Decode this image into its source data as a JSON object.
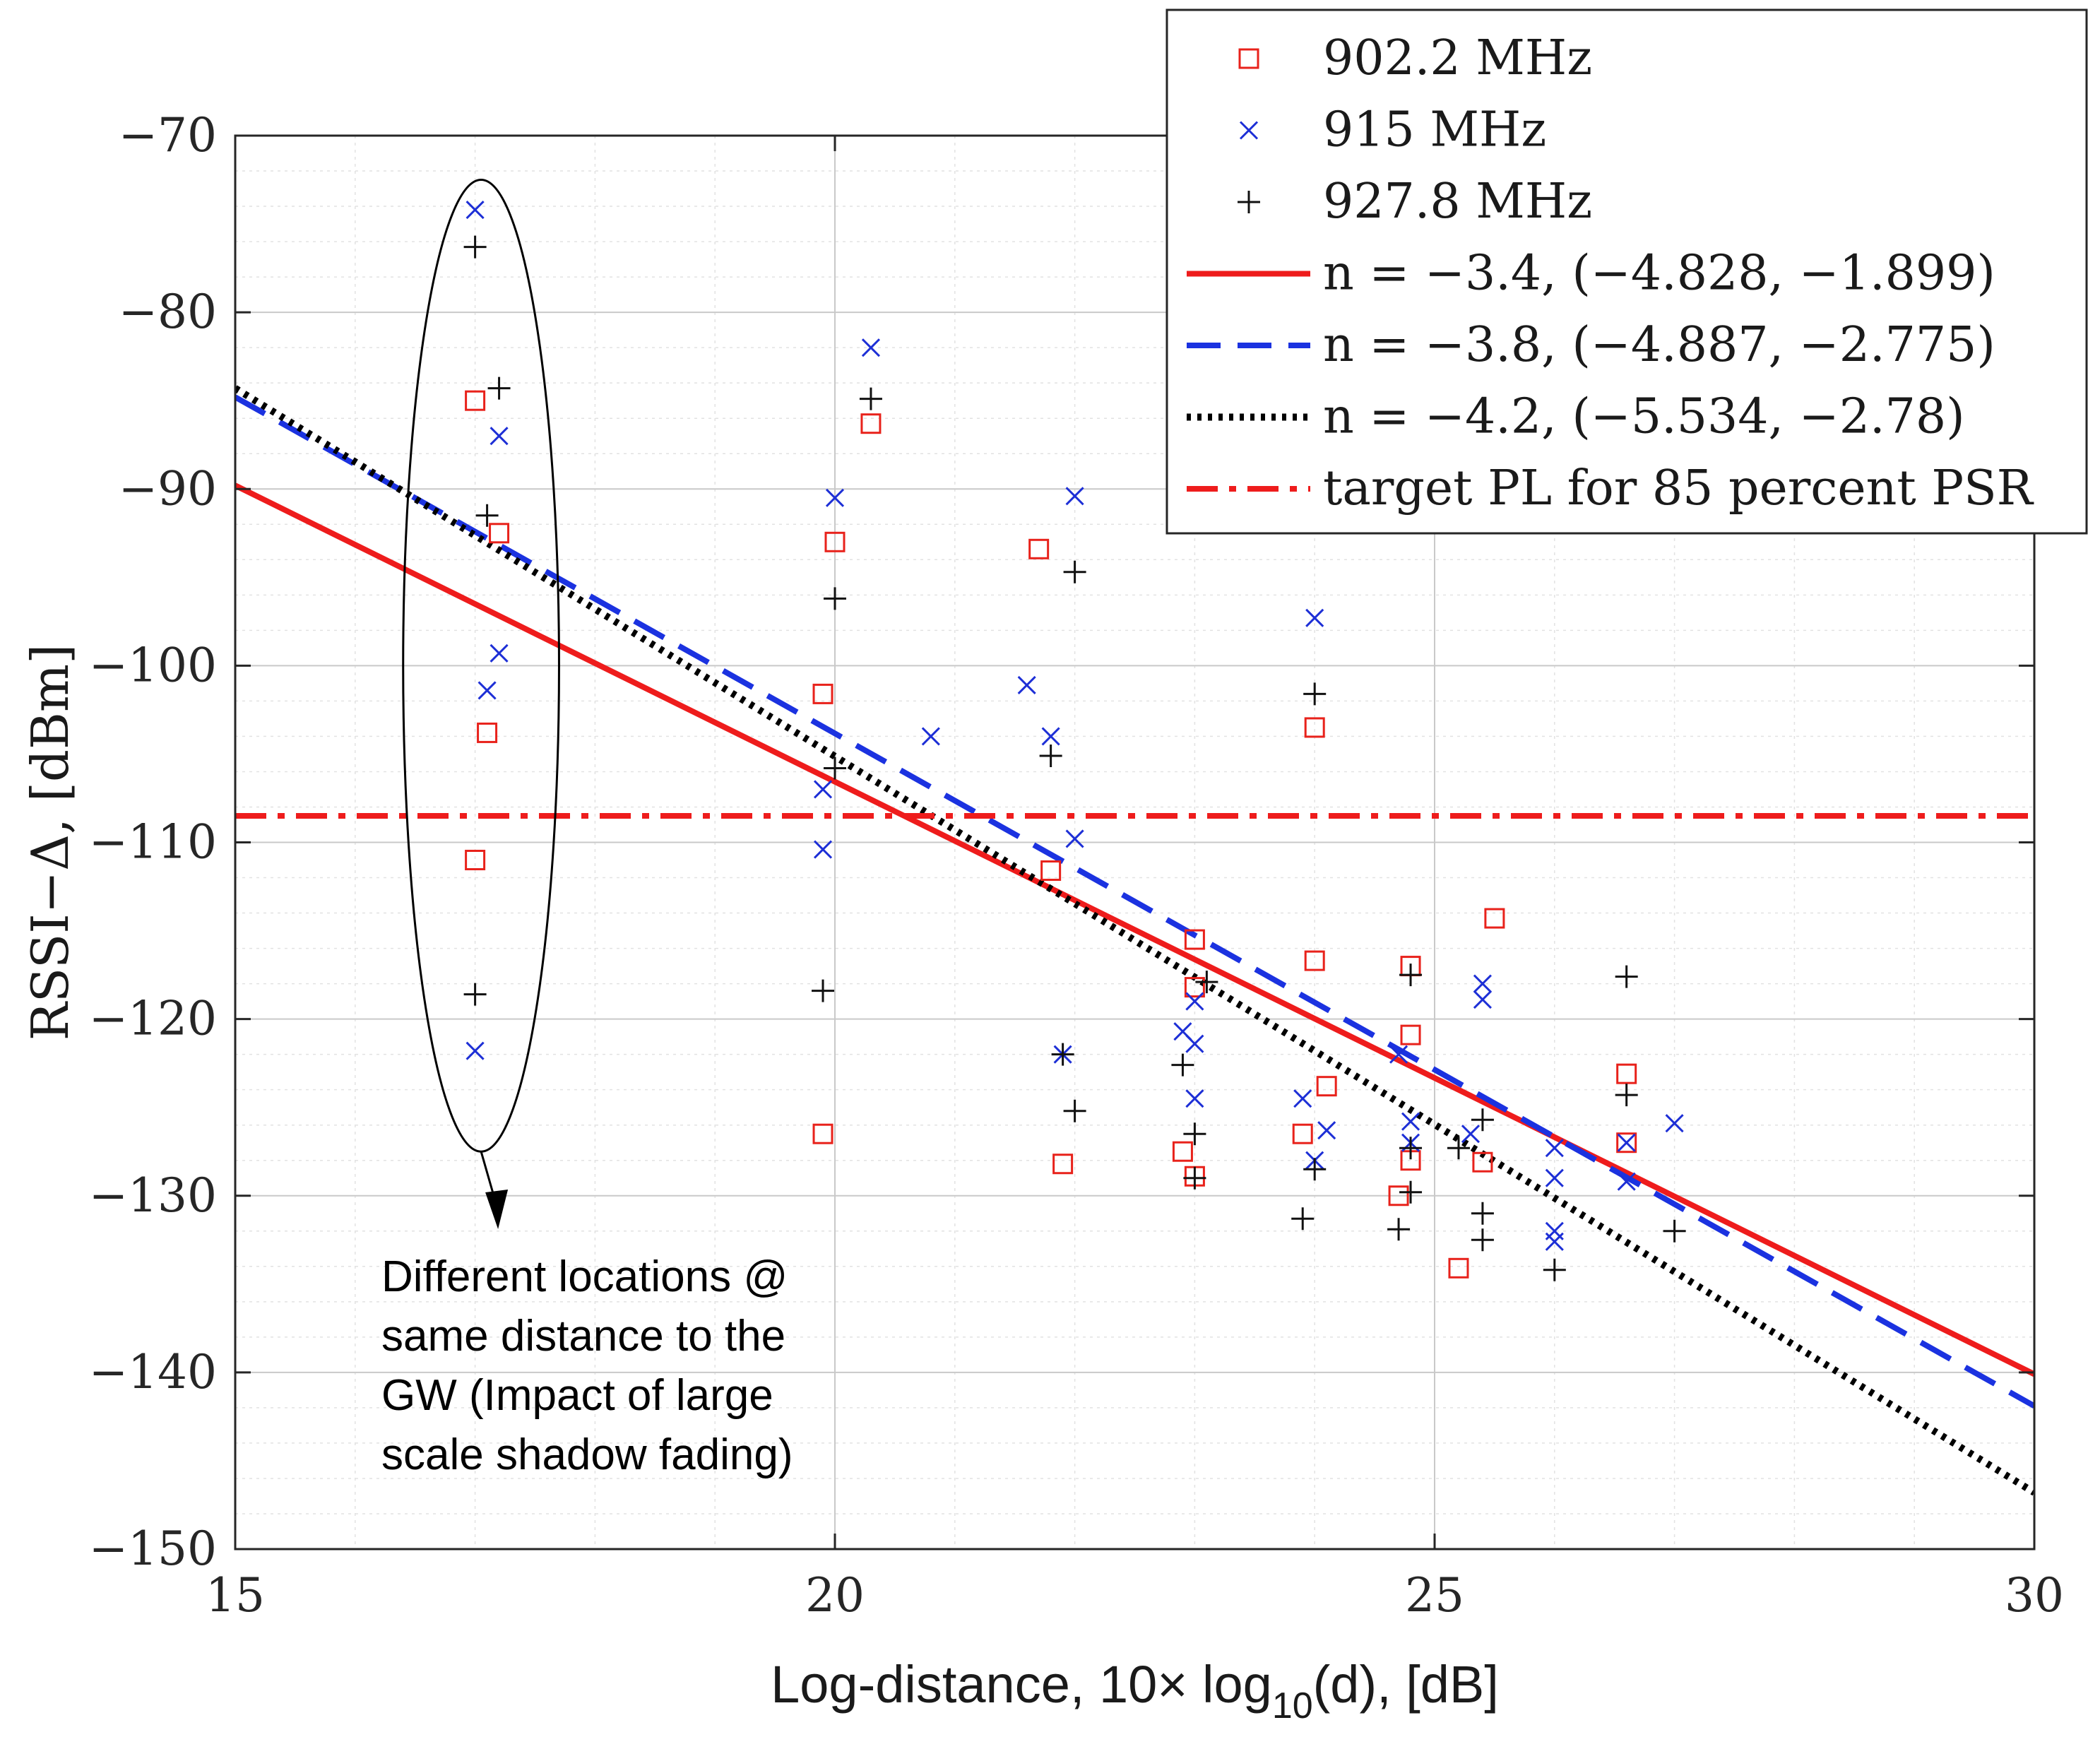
{
  "chart_data": {
    "type": "scatter",
    "xlabel": "Log-distance, 10× log10(d), [dB]",
    "xlabel_parts": {
      "main": "Log-distance, 10× log",
      "sub": "10",
      "tail": "(d), [dB]"
    },
    "ylabel": "RSSI−Δ, [dBm]",
    "xlim": [
      15,
      30
    ],
    "ylim": [
      -150,
      -70
    ],
    "xticks": [
      15,
      20,
      25,
      30
    ],
    "xtick_labels": [
      "15",
      "20",
      "25",
      "30"
    ],
    "yticks": [
      -150,
      -140,
      -130,
      -120,
      -110,
      -100,
      -90,
      -80,
      -70
    ],
    "ytick_labels": [
      "−150",
      "−140",
      "−130",
      "−120",
      "−110",
      "−100",
      "−90",
      "−80",
      "−70"
    ],
    "grid": true,
    "minor_grid": true,
    "legend_position": "top-right",
    "series": [
      {
        "name": "902.2 MHz",
        "kind": "markers",
        "marker": "square",
        "color": "#e8221b",
        "points": [
          [
            17.0,
            -85.0
          ],
          [
            17.2,
            -92.5
          ],
          [
            17.1,
            -103.8
          ],
          [
            17.0,
            -111.0
          ],
          [
            20.0,
            -93.0
          ],
          [
            19.9,
            -101.6
          ],
          [
            20.3,
            -86.3
          ],
          [
            19.9,
            -126.5
          ],
          [
            21.7,
            -93.4
          ],
          [
            21.8,
            -111.6
          ],
          [
            21.9,
            -128.2
          ],
          [
            23.0,
            -115.5
          ],
          [
            23.0,
            -118.2
          ],
          [
            22.9,
            -127.5
          ],
          [
            23.0,
            -128.9
          ],
          [
            24.0,
            -103.5
          ],
          [
            24.0,
            -116.7
          ],
          [
            24.1,
            -123.8
          ],
          [
            23.9,
            -126.5
          ],
          [
            24.8,
            -117.0
          ],
          [
            24.8,
            -120.9
          ],
          [
            24.8,
            -128.0
          ],
          [
            24.7,
            -130.0
          ],
          [
            25.2,
            -134.1
          ],
          [
            25.5,
            -114.3
          ],
          [
            25.4,
            -128.1
          ],
          [
            26.6,
            -123.1
          ],
          [
            26.6,
            -127.0
          ]
        ]
      },
      {
        "name": "915 MHz",
        "kind": "markers",
        "marker": "x",
        "color": "#1d2fd6",
        "points": [
          [
            17.0,
            -74.2
          ],
          [
            17.2,
            -87.0
          ],
          [
            17.2,
            -99.3
          ],
          [
            17.1,
            -101.4
          ],
          [
            17.0,
            -121.8
          ],
          [
            20.3,
            -82.0
          ],
          [
            20.0,
            -90.5
          ],
          [
            19.9,
            -107.0
          ],
          [
            19.9,
            -110.4
          ],
          [
            20.8,
            -104.0
          ],
          [
            21.6,
            -101.1
          ],
          [
            22.0,
            -90.4
          ],
          [
            21.8,
            -104.0
          ],
          [
            22.0,
            -109.8
          ],
          [
            21.9,
            -122.0
          ],
          [
            23.0,
            -119.0
          ],
          [
            22.9,
            -120.7
          ],
          [
            23.0,
            -121.4
          ],
          [
            23.0,
            -124.5
          ],
          [
            24.0,
            -97.3
          ],
          [
            23.9,
            -124.5
          ],
          [
            24.1,
            -126.3
          ],
          [
            24.0,
            -128.0
          ],
          [
            24.7,
            -122.0
          ],
          [
            24.8,
            -125.8
          ],
          [
            24.8,
            -127.0
          ],
          [
            25.4,
            -118.0
          ],
          [
            25.4,
            -118.9
          ],
          [
            25.3,
            -126.5
          ],
          [
            26.0,
            -127.3
          ],
          [
            26.0,
            -129.0
          ],
          [
            26.0,
            -132.0
          ],
          [
            26.0,
            -132.6
          ],
          [
            26.6,
            -127.0
          ],
          [
            26.6,
            -129.2
          ],
          [
            27.0,
            -125.9
          ]
        ]
      },
      {
        "name": "927.8 MHz",
        "kind": "markers",
        "marker": "plus",
        "color": "#111111",
        "points": [
          [
            17.0,
            -76.3
          ],
          [
            17.2,
            -84.3
          ],
          [
            17.1,
            -91.5
          ],
          [
            17.0,
            -118.6
          ],
          [
            20.3,
            -84.9
          ],
          [
            20.0,
            -96.2
          ],
          [
            20.0,
            -105.8
          ],
          [
            19.9,
            -118.4
          ],
          [
            22.0,
            -94.7
          ],
          [
            21.8,
            -105.1
          ],
          [
            21.9,
            -122.0
          ],
          [
            22.0,
            -125.2
          ],
          [
            23.1,
            -117.9
          ],
          [
            22.9,
            -122.6
          ],
          [
            23.0,
            -126.5
          ],
          [
            23.0,
            -129.0
          ],
          [
            24.0,
            -101.6
          ],
          [
            24.0,
            -128.5
          ],
          [
            23.9,
            -131.3
          ],
          [
            24.8,
            -117.5
          ],
          [
            24.8,
            -127.3
          ],
          [
            24.8,
            -129.8
          ],
          [
            24.7,
            -131.9
          ],
          [
            25.4,
            -125.7
          ],
          [
            25.2,
            -127.3
          ],
          [
            25.4,
            -131.0
          ],
          [
            25.4,
            -132.5
          ],
          [
            26.0,
            -134.2
          ],
          [
            26.6,
            -117.6
          ],
          [
            26.6,
            -124.3
          ],
          [
            27.0,
            -132.0
          ]
        ]
      },
      {
        "name": "n = −3.4, (−4.828, −1.899)",
        "kind": "line",
        "style": "solid",
        "color": "#ee1c1c",
        "points": [
          [
            15,
            -89.8
          ],
          [
            30,
            -140.1
          ]
        ]
      },
      {
        "name": "n = −3.8, (−4.887, −2.775)",
        "kind": "line",
        "style": "dashed",
        "color": "#1b32e0",
        "points": [
          [
            15,
            -84.8
          ],
          [
            30,
            -141.9
          ]
        ]
      },
      {
        "name": "n = −4.2, (−5.534, −2.78)",
        "kind": "line",
        "style": "dotted",
        "color": "#000000",
        "points": [
          [
            15,
            -84.3
          ],
          [
            30,
            -146.8
          ]
        ]
      },
      {
        "name": "target PL for 85 percent PSR",
        "kind": "line",
        "style": "dashdot",
        "color": "#ee1c1c",
        "points": [
          [
            15,
            -108.5
          ],
          [
            30,
            -108.5
          ]
        ]
      }
    ],
    "annotation": {
      "lines": [
        "Different locations @",
        "same distance to the",
        "GW (Impact of large",
        "scale shadow fading)"
      ],
      "ellipse_center": [
        17.05,
        -100.0
      ],
      "ellipse_radii": [
        0.65,
        27.5
      ]
    }
  }
}
